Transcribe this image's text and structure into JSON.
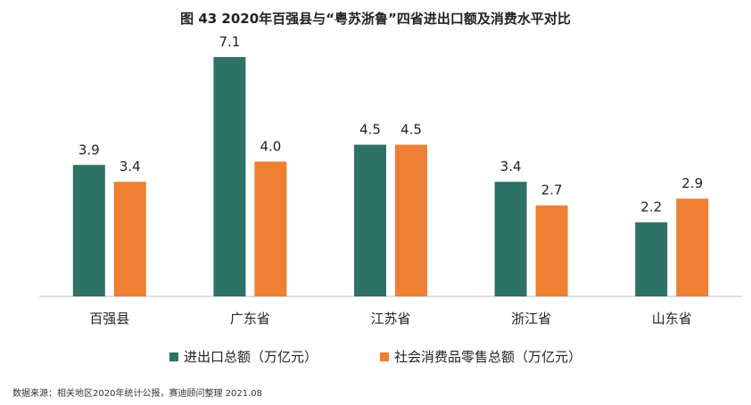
{
  "chart_data": {
    "type": "bar",
    "title": "图 43  2020年百强县与“粤苏浙鲁”四省进出口额及消费水平对比",
    "categories": [
      "百强县",
      "广东省",
      "江苏省",
      "浙江省",
      "山东省"
    ],
    "series": [
      {
        "name": "进出口总额（万亿元）",
        "values": [
          3.9,
          7.1,
          4.5,
          3.4,
          2.2
        ],
        "color": "#2e7266"
      },
      {
        "name": "社会消费品零售总额（万亿元）",
        "values": [
          3.4,
          4.0,
          4.5,
          2.7,
          2.9
        ],
        "color": "#ee7f33"
      }
    ],
    "ylim": [
      0,
      8
    ],
    "grid": false,
    "legend_position": "bottom"
  },
  "source": "数据来源：相关地区2020年统计公报，赛迪顾问整理  2021.08"
}
